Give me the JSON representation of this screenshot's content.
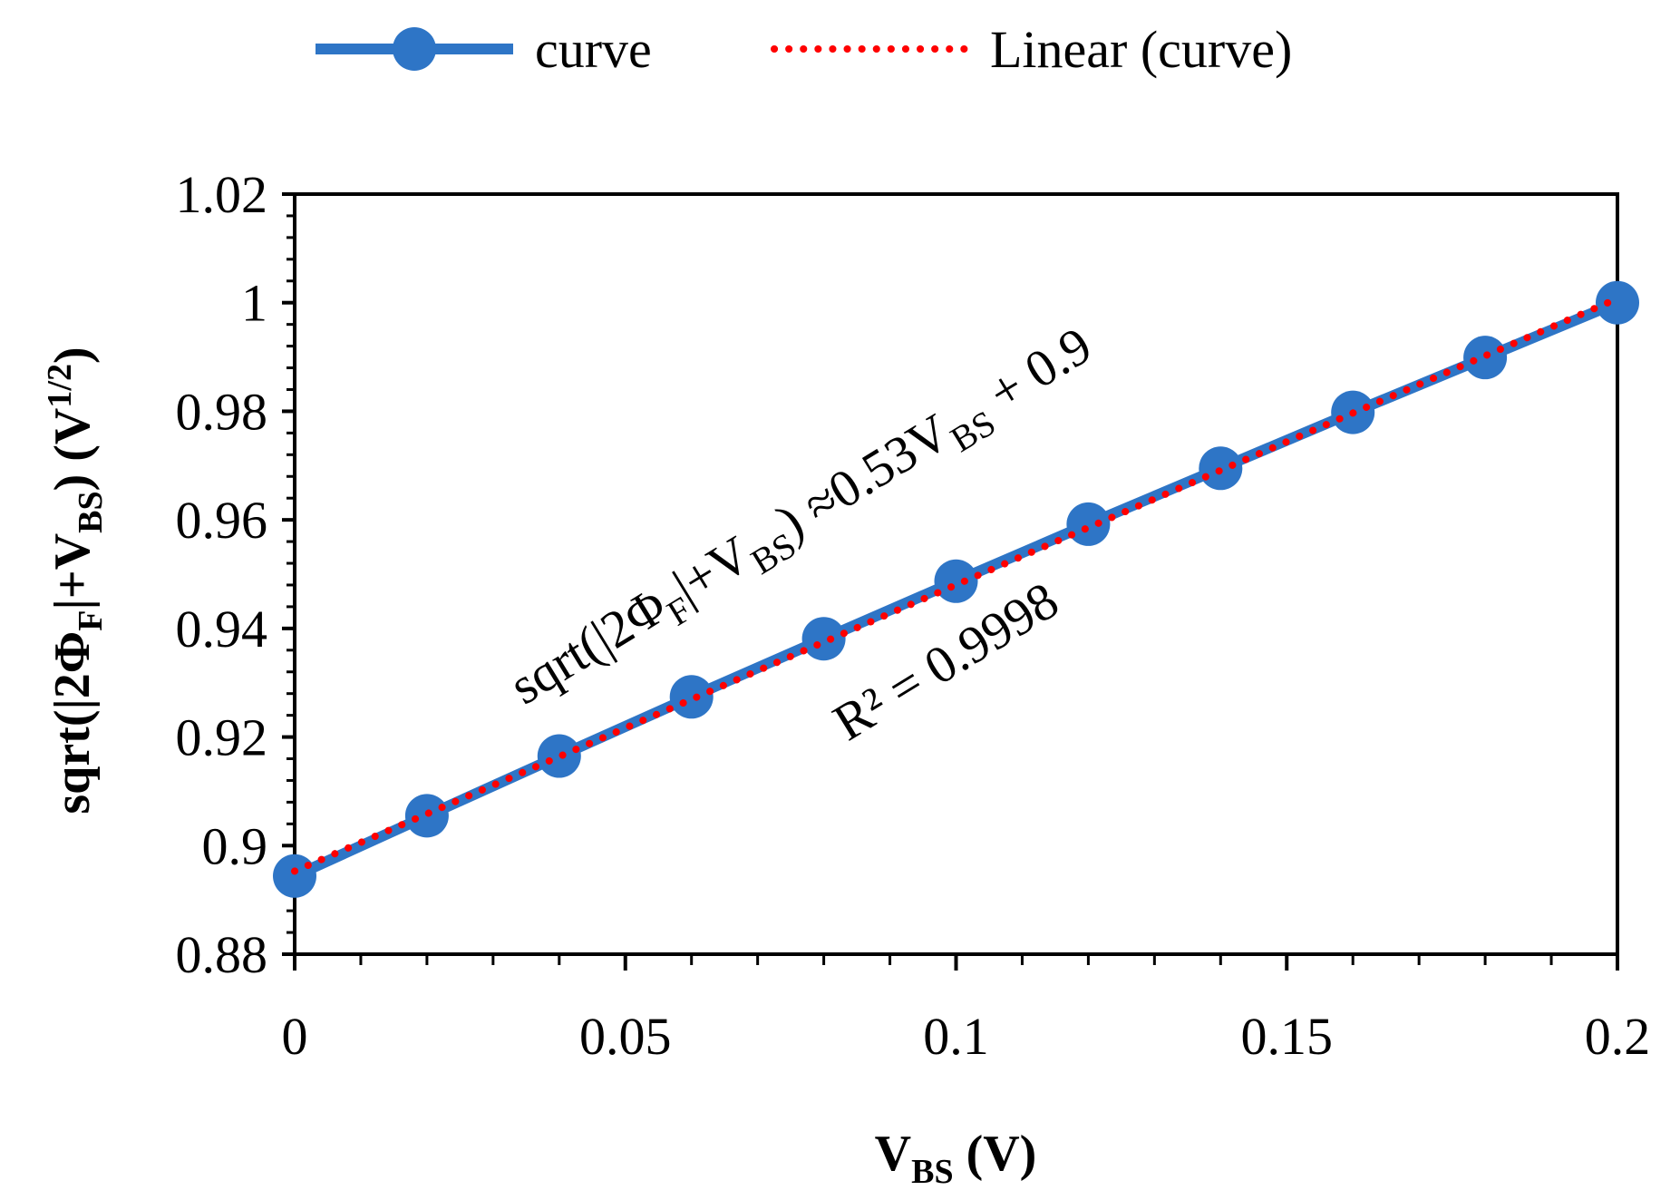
{
  "chart_data": {
    "type": "line",
    "x": [
      0,
      0.02,
      0.04,
      0.06,
      0.08,
      0.1,
      0.12,
      0.14,
      0.16,
      0.18,
      0.2
    ],
    "series": [
      {
        "name": "curve",
        "color": "#2E75C6",
        "values": [
          0.8944,
          0.9055,
          0.9165,
          0.9274,
          0.9381,
          0.9487,
          0.9592,
          0.9695,
          0.9798,
          0.9899,
          1.0
        ]
      }
    ],
    "trendline": {
      "name": "Linear (curve)",
      "color": "#FF0000",
      "slope": 0.5273,
      "intercept": 0.8953
    },
    "xlim": [
      0,
      0.2
    ],
    "ylim": [
      0.88,
      1.02
    ],
    "xticks": [
      0,
      0.05,
      0.1,
      0.15,
      0.2
    ],
    "xtick_labels": [
      "0",
      "0.05",
      "0.1",
      "0.15",
      "0.2"
    ],
    "yticks": [
      0.88,
      0.9,
      0.92,
      0.94,
      0.96,
      0.98,
      1.0,
      1.02
    ],
    "ytick_labels": [
      "0.88",
      "0.9",
      "0.92",
      "0.94",
      "0.96",
      "0.98",
      "1",
      "1.02"
    ],
    "xlabel": {
      "main": "V",
      "sub": "BS",
      "tail": " (V)"
    },
    "ylabel": {
      "p1": "sqrt(|2Φ",
      "s1": "F",
      "p2": "|+V",
      "s2": "BS",
      "p3": ") (V",
      "sup": "1/2",
      "p4": ")"
    },
    "annotation_equation": {
      "p1": "sqrt(|2Φ",
      "s1": "F",
      "p2": "|+V",
      "s2": "BS",
      "p3": ") ≈0.53V",
      "s3": "BS",
      "p4": " + 0.9"
    },
    "annotation_r2": "R² = 0.9998",
    "legend": [
      "curve",
      "Linear (curve)"
    ],
    "legend_position": "top"
  }
}
